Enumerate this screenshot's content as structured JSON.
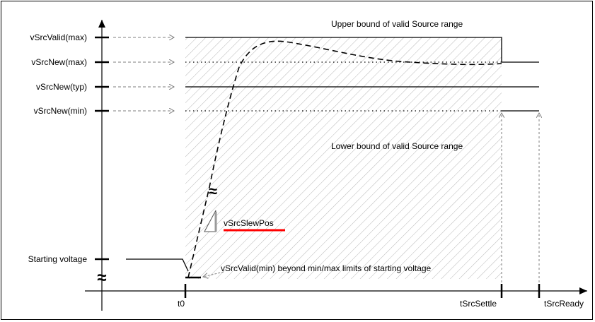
{
  "y_axis_labels": {
    "vsrcvalid_max": "vSrcValid(max)",
    "vsrcnew_max": "vSrcNew(max)",
    "vsrcnew_typ": "vSrcNew(typ)",
    "vsrcnew_min": "vSrcNew(min)",
    "starting_voltage": "Starting voltage"
  },
  "x_axis_labels": {
    "t0": "t0",
    "tsrcsettle": "tSrcSettle",
    "tsrcready": "tSrcReady"
  },
  "annotations": {
    "upper_bound": "Upper bound of valid Source range",
    "lower_bound": "Lower bound of valid Source range",
    "slew": "vSrcSlewPos",
    "vsrcvalid_min_note": "vSrcValid(min) beyond min/max limits of starting voltage",
    "break_symbol": "≈"
  },
  "colors": {
    "highlight_underline": "#ff0000",
    "line": "#000000",
    "hatch": "#b8b8b8",
    "dotted_arrow": "#7f7f7f"
  }
}
